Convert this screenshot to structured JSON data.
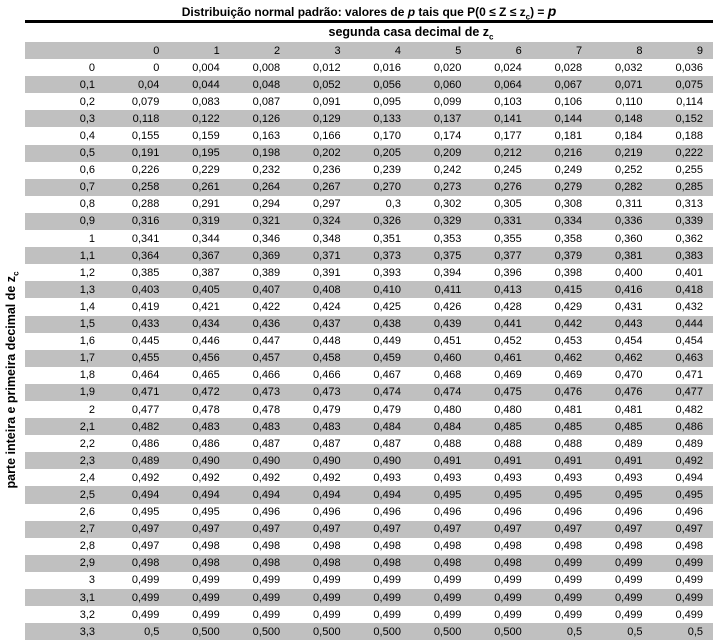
{
  "colors": {
    "stripe": "#c0c0c0",
    "rule": "#000000",
    "text": "#000000",
    "background": "#ffffff"
  },
  "title": {
    "part1": "Distribuição normal padrão: valores de ",
    "p1": "p",
    "part2": " tais que P(0 ≤ Z ≤ z",
    "z_sub": "c",
    "part3": ") = ",
    "p2": "p"
  },
  "column_group_header": {
    "text": "segunda casa decimal de z",
    "sub": "c"
  },
  "row_group_header": {
    "text": "parte inteira e primeira decimal de z",
    "sub": "c"
  },
  "table": {
    "corner": "",
    "columns": [
      "0",
      "1",
      "2",
      "3",
      "4",
      "5",
      "6",
      "7",
      "8",
      "9"
    ],
    "rows": [
      {
        "label": "0",
        "values": [
          "0",
          "0,004",
          "0,008",
          "0,012",
          "0,016",
          "0,020",
          "0,024",
          "0,028",
          "0,032",
          "0,036"
        ]
      },
      {
        "label": "0,1",
        "values": [
          "0,04",
          "0,044",
          "0,048",
          "0,052",
          "0,056",
          "0,060",
          "0,064",
          "0,067",
          "0,071",
          "0,075"
        ]
      },
      {
        "label": "0,2",
        "values": [
          "0,079",
          "0,083",
          "0,087",
          "0,091",
          "0,095",
          "0,099",
          "0,103",
          "0,106",
          "0,110",
          "0,114"
        ]
      },
      {
        "label": "0,3",
        "values": [
          "0,118",
          "0,122",
          "0,126",
          "0,129",
          "0,133",
          "0,137",
          "0,141",
          "0,144",
          "0,148",
          "0,152"
        ]
      },
      {
        "label": "0,4",
        "values": [
          "0,155",
          "0,159",
          "0,163",
          "0,166",
          "0,170",
          "0,174",
          "0,177",
          "0,181",
          "0,184",
          "0,188"
        ]
      },
      {
        "label": "0,5",
        "values": [
          "0,191",
          "0,195",
          "0,198",
          "0,202",
          "0,205",
          "0,209",
          "0,212",
          "0,216",
          "0,219",
          "0,222"
        ]
      },
      {
        "label": "0,6",
        "values": [
          "0,226",
          "0,229",
          "0,232",
          "0,236",
          "0,239",
          "0,242",
          "0,245",
          "0,249",
          "0,252",
          "0,255"
        ]
      },
      {
        "label": "0,7",
        "values": [
          "0,258",
          "0,261",
          "0,264",
          "0,267",
          "0,270",
          "0,273",
          "0,276",
          "0,279",
          "0,282",
          "0,285"
        ]
      },
      {
        "label": "0,8",
        "values": [
          "0,288",
          "0,291",
          "0,294",
          "0,297",
          "0,3",
          "0,302",
          "0,305",
          "0,308",
          "0,311",
          "0,313"
        ]
      },
      {
        "label": "0,9",
        "values": [
          "0,316",
          "0,319",
          "0,321",
          "0,324",
          "0,326",
          "0,329",
          "0,331",
          "0,334",
          "0,336",
          "0,339"
        ]
      },
      {
        "label": "1",
        "values": [
          "0,341",
          "0,344",
          "0,346",
          "0,348",
          "0,351",
          "0,353",
          "0,355",
          "0,358",
          "0,360",
          "0,362"
        ]
      },
      {
        "label": "1,1",
        "values": [
          "0,364",
          "0,367",
          "0,369",
          "0,371",
          "0,373",
          "0,375",
          "0,377",
          "0,379",
          "0,381",
          "0,383"
        ]
      },
      {
        "label": "1,2",
        "values": [
          "0,385",
          "0,387",
          "0,389",
          "0,391",
          "0,393",
          "0,394",
          "0,396",
          "0,398",
          "0,400",
          "0,401"
        ]
      },
      {
        "label": "1,3",
        "values": [
          "0,403",
          "0,405",
          "0,407",
          "0,408",
          "0,410",
          "0,411",
          "0,413",
          "0,415",
          "0,416",
          "0,418"
        ]
      },
      {
        "label": "1,4",
        "values": [
          "0,419",
          "0,421",
          "0,422",
          "0,424",
          "0,425",
          "0,426",
          "0,428",
          "0,429",
          "0,431",
          "0,432"
        ]
      },
      {
        "label": "1,5",
        "values": [
          "0,433",
          "0,434",
          "0,436",
          "0,437",
          "0,438",
          "0,439",
          "0,441",
          "0,442",
          "0,443",
          "0,444"
        ]
      },
      {
        "label": "1,6",
        "values": [
          "0,445",
          "0,446",
          "0,447",
          "0,448",
          "0,449",
          "0,451",
          "0,452",
          "0,453",
          "0,454",
          "0,454"
        ]
      },
      {
        "label": "1,7",
        "values": [
          "0,455",
          "0,456",
          "0,457",
          "0,458",
          "0,459",
          "0,460",
          "0,461",
          "0,462",
          "0,462",
          "0,463"
        ]
      },
      {
        "label": "1,8",
        "values": [
          "0,464",
          "0,465",
          "0,466",
          "0,466",
          "0,467",
          "0,468",
          "0,469",
          "0,469",
          "0,470",
          "0,471"
        ]
      },
      {
        "label": "1,9",
        "values": [
          "0,471",
          "0,472",
          "0,473",
          "0,473",
          "0,474",
          "0,474",
          "0,475",
          "0,476",
          "0,476",
          "0,477"
        ]
      },
      {
        "label": "2",
        "values": [
          "0,477",
          "0,478",
          "0,478",
          "0,479",
          "0,479",
          "0,480",
          "0,480",
          "0,481",
          "0,481",
          "0,482"
        ]
      },
      {
        "label": "2,1",
        "values": [
          "0,482",
          "0,483",
          "0,483",
          "0,483",
          "0,484",
          "0,484",
          "0,485",
          "0,485",
          "0,485",
          "0,486"
        ]
      },
      {
        "label": "2,2",
        "values": [
          "0,486",
          "0,486",
          "0,487",
          "0,487",
          "0,487",
          "0,488",
          "0,488",
          "0,488",
          "0,489",
          "0,489"
        ]
      },
      {
        "label": "2,3",
        "values": [
          "0,489",
          "0,490",
          "0,490",
          "0,490",
          "0,490",
          "0,491",
          "0,491",
          "0,491",
          "0,491",
          "0,492"
        ]
      },
      {
        "label": "2,4",
        "values": [
          "0,492",
          "0,492",
          "0,492",
          "0,492",
          "0,493",
          "0,493",
          "0,493",
          "0,493",
          "0,493",
          "0,494"
        ]
      },
      {
        "label": "2,5",
        "values": [
          "0,494",
          "0,494",
          "0,494",
          "0,494",
          "0,494",
          "0,495",
          "0,495",
          "0,495",
          "0,495",
          "0,495"
        ]
      },
      {
        "label": "2,6",
        "values": [
          "0,495",
          "0,495",
          "0,496",
          "0,496",
          "0,496",
          "0,496",
          "0,496",
          "0,496",
          "0,496",
          "0,496"
        ]
      },
      {
        "label": "2,7",
        "values": [
          "0,497",
          "0,497",
          "0,497",
          "0,497",
          "0,497",
          "0,497",
          "0,497",
          "0,497",
          "0,497",
          "0,497"
        ]
      },
      {
        "label": "2,8",
        "values": [
          "0,497",
          "0,498",
          "0,498",
          "0,498",
          "0,498",
          "0,498",
          "0,498",
          "0,498",
          "0,498",
          "0,498"
        ]
      },
      {
        "label": "2,9",
        "values": [
          "0,498",
          "0,498",
          "0,498",
          "0,498",
          "0,498",
          "0,498",
          "0,498",
          "0,499",
          "0,499",
          "0,499"
        ]
      },
      {
        "label": "3",
        "values": [
          "0,499",
          "0,499",
          "0,499",
          "0,499",
          "0,499",
          "0,499",
          "0,499",
          "0,499",
          "0,499",
          "0,499"
        ]
      },
      {
        "label": "3,1",
        "values": [
          "0,499",
          "0,499",
          "0,499",
          "0,499",
          "0,499",
          "0,499",
          "0,499",
          "0,499",
          "0,499",
          "0,499"
        ]
      },
      {
        "label": "3,2",
        "values": [
          "0,499",
          "0,499",
          "0,499",
          "0,499",
          "0,499",
          "0,499",
          "0,499",
          "0,499",
          "0,499",
          "0,499"
        ]
      },
      {
        "label": "3,3",
        "values": [
          "0,5",
          "0,500",
          "0,500",
          "0,500",
          "0,500",
          "0,500",
          "0,500",
          "0,5",
          "0,5",
          "0,5"
        ]
      }
    ]
  }
}
